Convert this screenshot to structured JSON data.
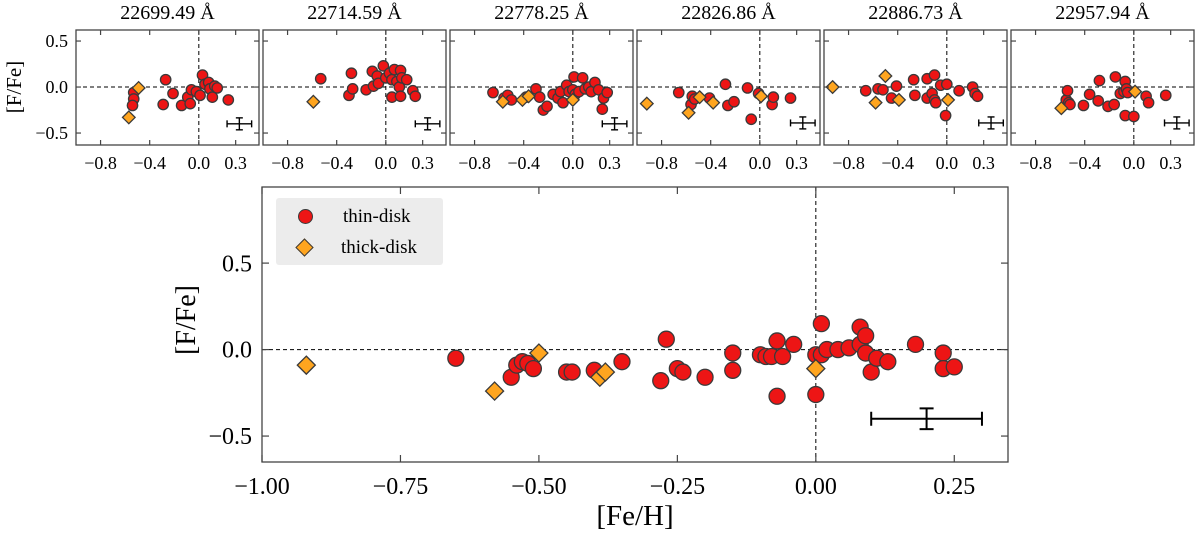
{
  "colors": {
    "thin": "#ed1515",
    "thick": "#ffa51f",
    "edge": "#3a3a3a",
    "spine": "#444444",
    "dashed": "#000000",
    "legend_bg": "#ececec",
    "errorbar": "#000000"
  },
  "legend": {
    "items": [
      {
        "label": "thin-disk",
        "marker": "circle"
      },
      {
        "label": "thick-disk",
        "marker": "diamond"
      }
    ]
  },
  "chart_data": {
    "type": "scatter",
    "small_ylabel": "[F/Fe]",
    "small_xlim": [
      -1.0,
      0.49
    ],
    "small_ylim": [
      -0.63,
      0.62
    ],
    "small_xticks": {
      "values": [
        -0.8,
        -0.4,
        0.0,
        0.3
      ],
      "labels": [
        "−0.8",
        "−0.4",
        "0.0",
        "0.3"
      ]
    },
    "small_yticks": {
      "values": [
        0.5,
        0.0,
        -0.5
      ],
      "labels": [
        "0.5",
        "0.0",
        "−0.5"
      ]
    },
    "panels": [
      {
        "title": "22699.49 Å",
        "thin": [
          [
            -0.53,
            -0.06
          ],
          [
            -0.53,
            -0.13
          ],
          [
            -0.54,
            -0.2
          ],
          [
            -0.29,
            -0.19
          ],
          [
            -0.27,
            0.08
          ],
          [
            -0.21,
            -0.07
          ],
          [
            -0.14,
            -0.2
          ],
          [
            -0.09,
            -0.11
          ],
          [
            -0.07,
            -0.18
          ],
          [
            -0.06,
            -0.03
          ],
          [
            -0.02,
            -0.05
          ],
          [
            0.01,
            -0.09
          ],
          [
            0.03,
            0.13
          ],
          [
            0.05,
            0.03
          ],
          [
            0.08,
            0.05
          ],
          [
            0.09,
            -0.02
          ],
          [
            0.11,
            -0.11
          ],
          [
            0.13,
            0.01
          ],
          [
            0.15,
            -0.01
          ],
          [
            0.24,
            -0.14
          ]
        ],
        "thick": [
          [
            -0.57,
            -0.33
          ],
          [
            -0.49,
            -0.01
          ]
        ],
        "errorbar": {
          "x": 0.33,
          "y": -0.4,
          "xerr": 0.1,
          "yerr": 0.065
        }
      },
      {
        "title": "22714.59 Å",
        "thin": [
          [
            -0.53,
            0.09
          ],
          [
            -0.3,
            -0.09
          ],
          [
            -0.28,
            0.15
          ],
          [
            -0.27,
            -0.02
          ],
          [
            -0.16,
            -0.03
          ],
          [
            -0.11,
            0.17
          ],
          [
            -0.1,
            0.01
          ],
          [
            -0.07,
            0.12
          ],
          [
            -0.06,
            0.04
          ],
          [
            -0.02,
            0.23
          ],
          [
            0.0,
            0.1
          ],
          [
            0.03,
            0.15
          ],
          [
            0.05,
            0.08
          ],
          [
            0.05,
            -0.11
          ],
          [
            0.07,
            0.19
          ],
          [
            0.09,
            0.06
          ],
          [
            0.11,
            0.0
          ],
          [
            0.12,
            0.18
          ],
          [
            0.12,
            -0.1
          ],
          [
            0.13,
            0.1
          ],
          [
            0.17,
            0.08
          ],
          [
            0.22,
            -0.04
          ],
          [
            0.24,
            -0.1
          ]
        ],
        "thick": [
          [
            -0.59,
            -0.16
          ]
        ],
        "errorbar": {
          "x": 0.34,
          "y": -0.4,
          "xerr": 0.1,
          "yerr": 0.065
        }
      },
      {
        "title": "22778.25 Å",
        "thin": [
          [
            -0.65,
            -0.06
          ],
          [
            -0.56,
            -0.12
          ],
          [
            -0.53,
            -0.09
          ],
          [
            -0.5,
            -0.14
          ],
          [
            -0.38,
            -0.11
          ],
          [
            -0.3,
            -0.02
          ],
          [
            -0.27,
            -0.11
          ],
          [
            -0.24,
            -0.25
          ],
          [
            -0.21,
            -0.21
          ],
          [
            -0.16,
            -0.08
          ],
          [
            -0.12,
            -0.12
          ],
          [
            -0.1,
            -0.05
          ],
          [
            -0.08,
            -0.17
          ],
          [
            -0.05,
            0.02
          ],
          [
            -0.03,
            -0.05
          ],
          [
            0.0,
            -0.03
          ],
          [
            0.01,
            0.11
          ],
          [
            0.02,
            -0.08
          ],
          [
            0.05,
            -0.05
          ],
          [
            0.08,
            0.1
          ],
          [
            0.1,
            -0.02
          ],
          [
            0.13,
            0.0
          ],
          [
            0.15,
            -0.05
          ],
          [
            0.18,
            0.05
          ],
          [
            0.21,
            -0.03
          ],
          [
            0.24,
            -0.24
          ],
          [
            0.25,
            -0.12
          ],
          [
            0.28,
            -0.06
          ]
        ],
        "thick": [
          [
            -0.57,
            -0.16
          ],
          [
            -0.41,
            -0.14
          ],
          [
            -0.36,
            -0.1
          ],
          [
            0.0,
            -0.14
          ]
        ],
        "errorbar": {
          "x": 0.34,
          "y": -0.4,
          "xerr": 0.1,
          "yerr": 0.065
        }
      },
      {
        "title": "22826.86 Å",
        "thin": [
          [
            -0.66,
            -0.06
          ],
          [
            -0.56,
            -0.19
          ],
          [
            -0.55,
            -0.1
          ],
          [
            -0.53,
            -0.13
          ],
          [
            -0.41,
            -0.12
          ],
          [
            -0.28,
            0.03
          ],
          [
            -0.26,
            -0.2
          ],
          [
            -0.21,
            -0.16
          ],
          [
            -0.1,
            -0.01
          ],
          [
            -0.07,
            -0.35
          ],
          [
            -0.01,
            -0.07
          ],
          [
            0.1,
            -0.19
          ],
          [
            0.11,
            -0.11
          ],
          [
            0.25,
            -0.12
          ]
        ],
        "thick": [
          [
            -0.92,
            -0.18
          ],
          [
            -0.58,
            -0.28
          ],
          [
            -0.49,
            -0.11
          ],
          [
            -0.38,
            -0.17
          ],
          [
            0.01,
            -0.1
          ]
        ],
        "errorbar": {
          "x": 0.35,
          "y": -0.39,
          "xerr": 0.1,
          "yerr": 0.065
        }
      },
      {
        "title": "22886.73 Å",
        "thin": [
          [
            -0.66,
            -0.04
          ],
          [
            -0.56,
            -0.02
          ],
          [
            -0.52,
            -0.03
          ],
          [
            -0.45,
            -0.12
          ],
          [
            -0.41,
            0.01
          ],
          [
            -0.27,
            0.08
          ],
          [
            -0.26,
            -0.09
          ],
          [
            -0.16,
            0.09
          ],
          [
            -0.16,
            -0.12
          ],
          [
            -0.12,
            -0.07
          ],
          [
            -0.1,
            0.13
          ],
          [
            -0.1,
            -0.14
          ],
          [
            -0.09,
            -0.17
          ],
          [
            -0.05,
            0.02
          ],
          [
            -0.01,
            -0.31
          ],
          [
            0.0,
            0.03
          ],
          [
            0.1,
            -0.04
          ],
          [
            0.21,
            0.0
          ],
          [
            0.23,
            -0.07
          ],
          [
            0.25,
            -0.1
          ]
        ],
        "thick": [
          [
            -0.93,
            0.0
          ],
          [
            -0.58,
            -0.17
          ],
          [
            -0.5,
            0.12
          ],
          [
            -0.39,
            -0.14
          ],
          [
            0.01,
            -0.14
          ]
        ],
        "errorbar": {
          "x": 0.36,
          "y": -0.39,
          "xerr": 0.1,
          "yerr": 0.065
        }
      },
      {
        "title": "22957.94 Å",
        "thin": [
          [
            -0.55,
            -0.14
          ],
          [
            -0.54,
            -0.04
          ],
          [
            -0.53,
            -0.17
          ],
          [
            -0.52,
            -0.19
          ],
          [
            -0.41,
            -0.2
          ],
          [
            -0.36,
            -0.08
          ],
          [
            -0.29,
            -0.15
          ],
          [
            -0.28,
            0.07
          ],
          [
            -0.21,
            -0.21
          ],
          [
            -0.16,
            -0.19
          ],
          [
            -0.15,
            0.11
          ],
          [
            -0.11,
            -0.07
          ],
          [
            -0.08,
            -0.05
          ],
          [
            -0.07,
            0.06
          ],
          [
            -0.07,
            -0.31
          ],
          [
            -0.06,
            -0.02
          ],
          [
            -0.05,
            -0.06
          ],
          [
            0.0,
            -0.32
          ],
          [
            0.1,
            -0.1
          ],
          [
            0.12,
            -0.17
          ],
          [
            0.26,
            -0.09
          ]
        ],
        "thick": [
          [
            -0.59,
            -0.23
          ],
          [
            0.01,
            -0.05
          ]
        ],
        "errorbar": {
          "x": 0.35,
          "y": -0.39,
          "xerr": 0.1,
          "yerr": 0.065
        }
      }
    ],
    "main": {
      "xlabel": "[Fe/H]",
      "ylabel": "[F/Fe]",
      "xlim": [
        -1.0,
        0.347
      ],
      "ylim": [
        -0.65,
        0.94
      ],
      "xticks": {
        "values": [
          -1.0,
          -0.75,
          -0.5,
          -0.25,
          0.0,
          0.25
        ],
        "labels": [
          "−1.00",
          "−0.75",
          "−0.50",
          "−0.25",
          "0.00",
          "0.25"
        ]
      },
      "yticks": {
        "values": [
          0.5,
          0.0,
          -0.5
        ],
        "labels": [
          "0.5",
          "0.0",
          "−0.5"
        ]
      },
      "thin": [
        [
          -0.65,
          -0.05
        ],
        [
          -0.55,
          -0.16
        ],
        [
          -0.54,
          -0.09
        ],
        [
          -0.53,
          -0.07
        ],
        [
          -0.52,
          -0.08
        ],
        [
          -0.51,
          -0.11
        ],
        [
          -0.45,
          -0.13
        ],
        [
          -0.44,
          -0.13
        ],
        [
          -0.4,
          -0.12
        ],
        [
          -0.35,
          -0.07
        ],
        [
          -0.28,
          -0.18
        ],
        [
          -0.27,
          0.06
        ],
        [
          -0.25,
          -0.11
        ],
        [
          -0.24,
          -0.13
        ],
        [
          -0.2,
          -0.16
        ],
        [
          -0.15,
          -0.12
        ],
        [
          -0.15,
          -0.02
        ],
        [
          -0.1,
          -0.03
        ],
        [
          -0.09,
          -0.04
        ],
        [
          -0.08,
          -0.04
        ],
        [
          -0.07,
          0.05
        ],
        [
          -0.07,
          -0.27
        ],
        [
          -0.06,
          -0.04
        ],
        [
          -0.04,
          0.03
        ],
        [
          0.0,
          -0.03
        ],
        [
          0.0,
          -0.26
        ],
        [
          0.01,
          -0.03
        ],
        [
          0.01,
          0.15
        ],
        [
          0.02,
          0.0
        ],
        [
          0.04,
          0.0
        ],
        [
          0.06,
          0.01
        ],
        [
          0.08,
          0.13
        ],
        [
          0.08,
          0.03
        ],
        [
          0.09,
          0.08
        ],
        [
          0.09,
          -0.02
        ],
        [
          0.1,
          -0.13
        ],
        [
          0.11,
          -0.05
        ],
        [
          0.13,
          -0.07
        ],
        [
          0.18,
          0.03
        ],
        [
          0.23,
          -0.02
        ],
        [
          0.23,
          -0.11
        ],
        [
          0.25,
          -0.1
        ]
      ],
      "thick": [
        [
          -0.92,
          -0.09
        ],
        [
          -0.58,
          -0.24
        ],
        [
          -0.5,
          -0.02
        ],
        [
          -0.39,
          -0.16
        ],
        [
          -0.38,
          -0.13
        ],
        [
          0.0,
          -0.11
        ]
      ],
      "errorbar": {
        "x": 0.2,
        "y": -0.4,
        "xerr": 0.1,
        "yerr": 0.06
      }
    }
  }
}
